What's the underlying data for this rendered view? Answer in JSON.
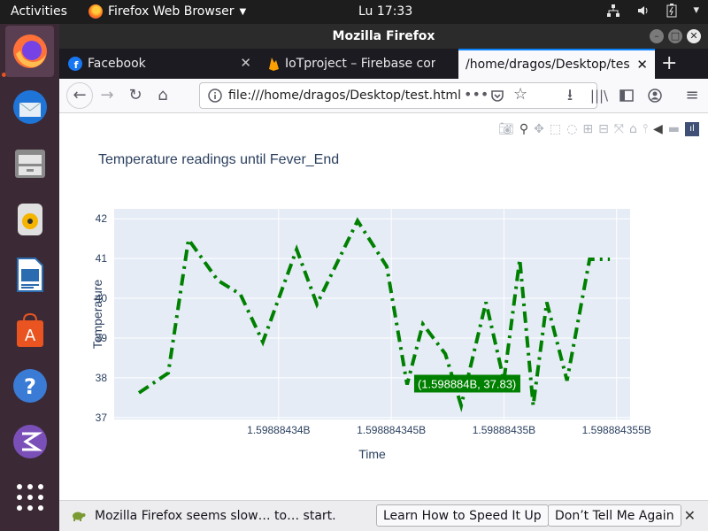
{
  "topbar": {
    "activities": "Activities",
    "app_name": "Firefox Web Browser",
    "clock": "Lu 17:33"
  },
  "window": {
    "title": "Mozilla Firefox"
  },
  "tabs": [
    {
      "label": "Facebook",
      "icon": "facebook-icon"
    },
    {
      "label": "IoTproject – Firebase cor",
      "icon": "firebase-icon"
    },
    {
      "label": "/home/dragos/Desktop/test",
      "icon": "none",
      "active": true
    }
  ],
  "urlbar": {
    "url": "file:///home/dragos/Desktop/test.html"
  },
  "chart_data": {
    "type": "line",
    "title": "Temperature readings until Fever_End",
    "xlabel": "Time",
    "ylabel": "Temperature",
    "x_tick_labels": [
      "1.59888434B",
      "1.598884345B",
      "1.59888435B",
      "1.598884355B"
    ],
    "x_ticks": [
      1598884340,
      1598884345,
      1598884350,
      1598884355
    ],
    "xlim": [
      1598884332.7,
      1598884355.6
    ],
    "y_ticks": [
      37,
      38,
      39,
      40,
      41,
      42
    ],
    "ylim": [
      36.95,
      42.25
    ],
    "line_style": "dashdot",
    "line_color": "#008000",
    "plot_bgcolor": "#e5ecf6",
    "grid": true,
    "series": [
      {
        "x": [
          1598884333.8,
          1598884335.1,
          1598884336.0,
          1598884337.3,
          1598884338.3,
          1598884339.3,
          1598884340.8,
          1598884341.7,
          1598884343.5,
          1598884344.8,
          1598884345.7,
          1598884346.4,
          1598884347.4,
          1598884348.1,
          1598884349.2,
          1598884350.0,
          1598884350.7,
          1598884351.3,
          1598884351.9,
          1598884352.8,
          1598884353.8,
          1598884354.7
        ],
        "y": [
          37.62,
          38.12,
          41.48,
          40.45,
          40.1,
          38.9,
          41.23,
          39.85,
          41.95,
          40.8,
          37.83,
          39.35,
          38.6,
          37.3,
          39.9,
          37.93,
          40.98,
          37.3,
          39.9,
          37.93,
          40.98,
          40.98
        ]
      }
    ],
    "hover_label": "(1.598884B, 37.83)"
  },
  "notification": {
    "text": "Mozilla Firefox seems slow… to… start.",
    "learn_button": "Learn How to Speed It Up",
    "dismiss_button": "Don’t Tell Me Again"
  }
}
